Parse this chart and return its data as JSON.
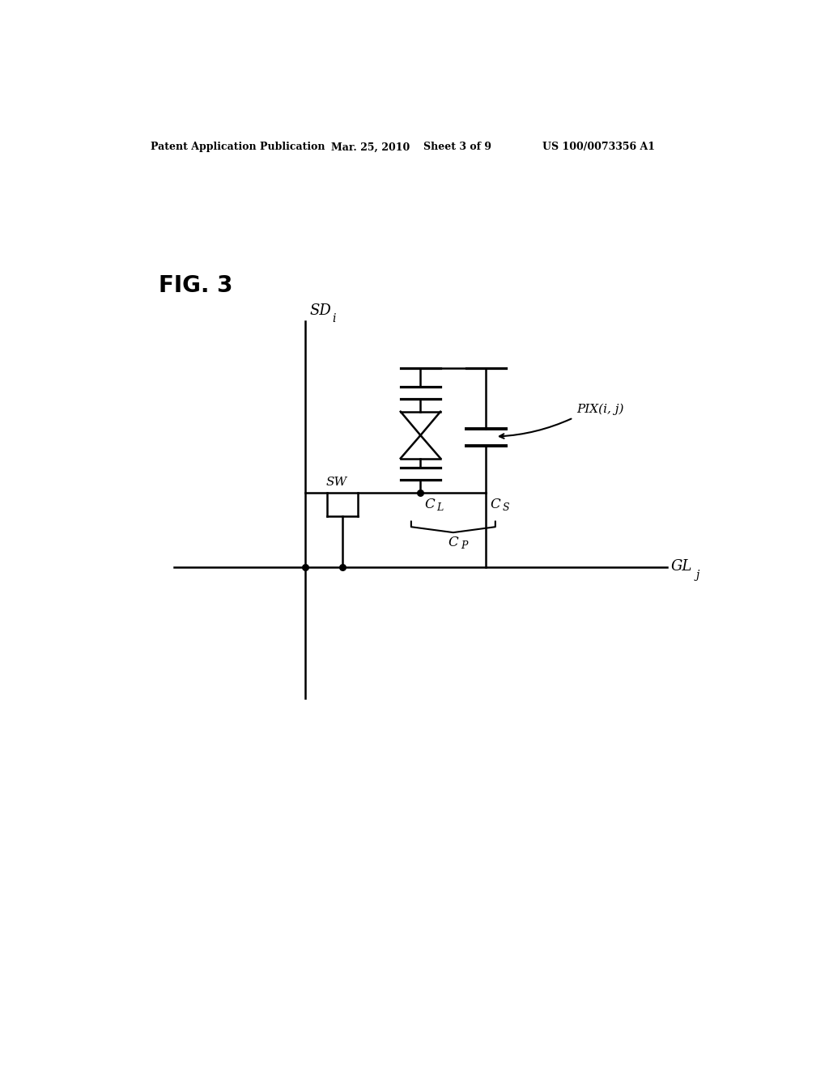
{
  "title_header": "Patent Application Publication",
  "date_header": "Mar. 25, 2010",
  "sheet_header": "Sheet 3 of 9",
  "patent_header": "US 100/0073356 A1",
  "fig_label": "FIG. 3",
  "background_color": "#ffffff",
  "line_color": "#000000",
  "line_width": 1.8,
  "sd_label": "SD",
  "sd_subscript": "i",
  "gl_label": "GL",
  "gl_subscript": "j",
  "sw_label": "SW",
  "cl_label": "C",
  "cl_subscript": "L",
  "cs_label": "C",
  "cs_subscript": "S",
  "cp_label": "C",
  "cp_subscript": "P",
  "pix_label": "PIX(i, j)"
}
